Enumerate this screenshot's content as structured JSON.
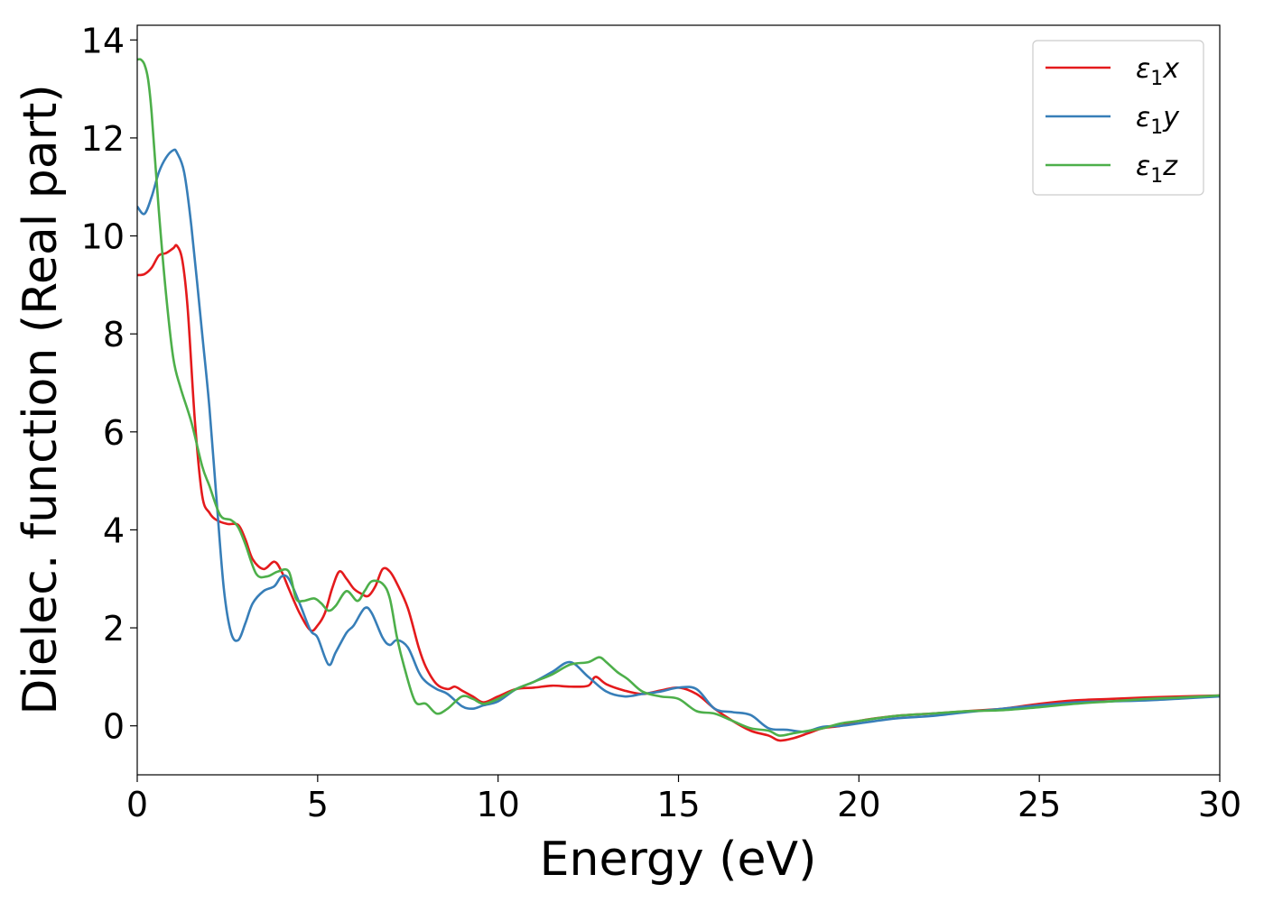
{
  "chart_data": {
    "type": "line",
    "xlabel": "Energy (eV)",
    "ylabel": "Dielec. function (Real part)",
    "xlim": [
      0,
      30
    ],
    "ylim": [
      -1,
      14.3
    ],
    "xticks": [
      "0",
      "5",
      "10",
      "15",
      "20",
      "25",
      "30"
    ],
    "yticks": [
      "0",
      "2",
      "4",
      "6",
      "8",
      "10",
      "12",
      "14"
    ],
    "grid": false,
    "legend_position": "top-right",
    "series": [
      {
        "name": "ε1x",
        "legend_base": "ε",
        "legend_sub": "1",
        "legend_axis": "x",
        "color": "#e41a1c",
        "x": [
          0,
          0.2,
          0.4,
          0.6,
          0.8,
          1.0,
          1.1,
          1.25,
          1.4,
          1.6,
          1.8,
          2.0,
          2.2,
          2.5,
          2.8,
          3.0,
          3.2,
          3.5,
          3.8,
          4.0,
          4.2,
          4.5,
          4.8,
          5.0,
          5.2,
          5.4,
          5.6,
          5.8,
          6.0,
          6.2,
          6.4,
          6.6,
          6.8,
          7.0,
          7.2,
          7.5,
          7.8,
          8.0,
          8.3,
          8.6,
          8.8,
          9.0,
          9.3,
          9.6,
          10,
          10.5,
          11,
          11.5,
          12,
          12.5,
          12.7,
          13,
          13.5,
          14,
          14.5,
          15,
          15.5,
          16,
          16.5,
          17,
          17.5,
          17.8,
          18.2,
          18.6,
          19,
          19.5,
          20,
          21,
          22,
          23,
          24,
          25,
          26,
          27,
          28,
          29,
          30
        ],
        "y": [
          9.2,
          9.22,
          9.35,
          9.6,
          9.65,
          9.75,
          9.8,
          9.5,
          8.5,
          6.2,
          4.7,
          4.35,
          4.2,
          4.12,
          4.1,
          3.8,
          3.4,
          3.2,
          3.35,
          3.15,
          2.8,
          2.3,
          1.95,
          2.05,
          2.3,
          2.8,
          3.15,
          3.0,
          2.8,
          2.7,
          2.65,
          2.85,
          3.2,
          3.15,
          2.9,
          2.4,
          1.6,
          1.2,
          0.85,
          0.75,
          0.8,
          0.72,
          0.6,
          0.48,
          0.6,
          0.75,
          0.78,
          0.82,
          0.8,
          0.82,
          1.0,
          0.85,
          0.72,
          0.65,
          0.72,
          0.78,
          0.65,
          0.35,
          0.1,
          -0.1,
          -0.2,
          -0.3,
          -0.25,
          -0.15,
          -0.05,
          0.0,
          0.1,
          0.2,
          0.25,
          0.3,
          0.35,
          0.45,
          0.52,
          0.55,
          0.58,
          0.6,
          0.62
        ]
      },
      {
        "name": "ε1y",
        "legend_base": "ε",
        "legend_sub": "1",
        "legend_axis": "y",
        "color": "#377eb8",
        "x": [
          0,
          0.2,
          0.4,
          0.6,
          0.8,
          1.0,
          1.1,
          1.3,
          1.5,
          1.8,
          2.0,
          2.2,
          2.4,
          2.6,
          2.8,
          3.0,
          3.2,
          3.5,
          3.8,
          4.0,
          4.2,
          4.5,
          4.8,
          5.0,
          5.3,
          5.5,
          5.8,
          6.0,
          6.3,
          6.5,
          6.8,
          7.0,
          7.2,
          7.5,
          7.8,
          8.0,
          8.3,
          8.6,
          9.0,
          9.3,
          9.6,
          10,
          10.5,
          11,
          11.5,
          12,
          12.5,
          13,
          13.5,
          14,
          14.5,
          15,
          15.5,
          16,
          16.5,
          17,
          17.5,
          18,
          18.5,
          19,
          19.5,
          20,
          21,
          22,
          23,
          24,
          25,
          26,
          27,
          28,
          29,
          30
        ],
        "y": [
          10.6,
          10.45,
          10.8,
          11.3,
          11.6,
          11.75,
          11.7,
          11.3,
          10.2,
          8.0,
          6.5,
          4.6,
          2.8,
          1.9,
          1.75,
          2.1,
          2.5,
          2.75,
          2.85,
          3.05,
          3.0,
          2.5,
          1.95,
          1.8,
          1.25,
          1.5,
          1.9,
          2.05,
          2.4,
          2.3,
          1.8,
          1.65,
          1.75,
          1.6,
          1.1,
          0.9,
          0.75,
          0.65,
          0.4,
          0.35,
          0.42,
          0.5,
          0.75,
          0.9,
          1.1,
          1.3,
          1.0,
          0.7,
          0.6,
          0.65,
          0.7,
          0.78,
          0.75,
          0.35,
          0.28,
          0.22,
          -0.05,
          -0.08,
          -0.12,
          -0.02,
          0.0,
          0.05,
          0.15,
          0.2,
          0.28,
          0.35,
          0.42,
          0.48,
          0.5,
          0.52,
          0.56,
          0.6
        ]
      },
      {
        "name": "ε1z",
        "legend_base": "ε",
        "legend_sub": "1",
        "legend_axis": "z",
        "color": "#4daf4a",
        "x": [
          0,
          0.1,
          0.2,
          0.3,
          0.4,
          0.6,
          0.8,
          1.0,
          1.2,
          1.5,
          1.8,
          2.0,
          2.3,
          2.6,
          2.8,
          3.0,
          3.3,
          3.6,
          3.9,
          4.2,
          4.4,
          4.6,
          4.9,
          5.1,
          5.3,
          5.5,
          5.8,
          6.1,
          6.3,
          6.5,
          6.8,
          7.0,
          7.2,
          7.4,
          7.7,
          8.0,
          8.3,
          8.6,
          9.0,
          9.3,
          9.6,
          10,
          10.5,
          11,
          11.5,
          12,
          12.5,
          12.8,
          13,
          13.3,
          13.6,
          14,
          14.5,
          15,
          15.5,
          16,
          16.5,
          17,
          17.5,
          17.8,
          18.2,
          18.6,
          19,
          19.5,
          20,
          21,
          22,
          23,
          24,
          25,
          26,
          27,
          28,
          29,
          30
        ],
        "y": [
          13.6,
          13.6,
          13.5,
          13.2,
          12.5,
          10.5,
          8.8,
          7.5,
          6.9,
          6.2,
          5.3,
          4.9,
          4.3,
          4.2,
          4.05,
          3.7,
          3.1,
          3.05,
          3.15,
          3.15,
          2.6,
          2.55,
          2.6,
          2.5,
          2.35,
          2.45,
          2.75,
          2.55,
          2.75,
          2.95,
          2.9,
          2.6,
          1.8,
          1.2,
          0.5,
          0.45,
          0.25,
          0.35,
          0.6,
          0.55,
          0.45,
          0.55,
          0.75,
          0.9,
          1.05,
          1.25,
          1.3,
          1.4,
          1.3,
          1.1,
          0.95,
          0.7,
          0.6,
          0.55,
          0.3,
          0.25,
          0.1,
          -0.05,
          -0.1,
          -0.2,
          -0.15,
          -0.1,
          -0.05,
          0.05,
          0.1,
          0.2,
          0.25,
          0.3,
          0.32,
          0.38,
          0.45,
          0.5,
          0.55,
          0.58,
          0.62
        ]
      }
    ]
  }
}
